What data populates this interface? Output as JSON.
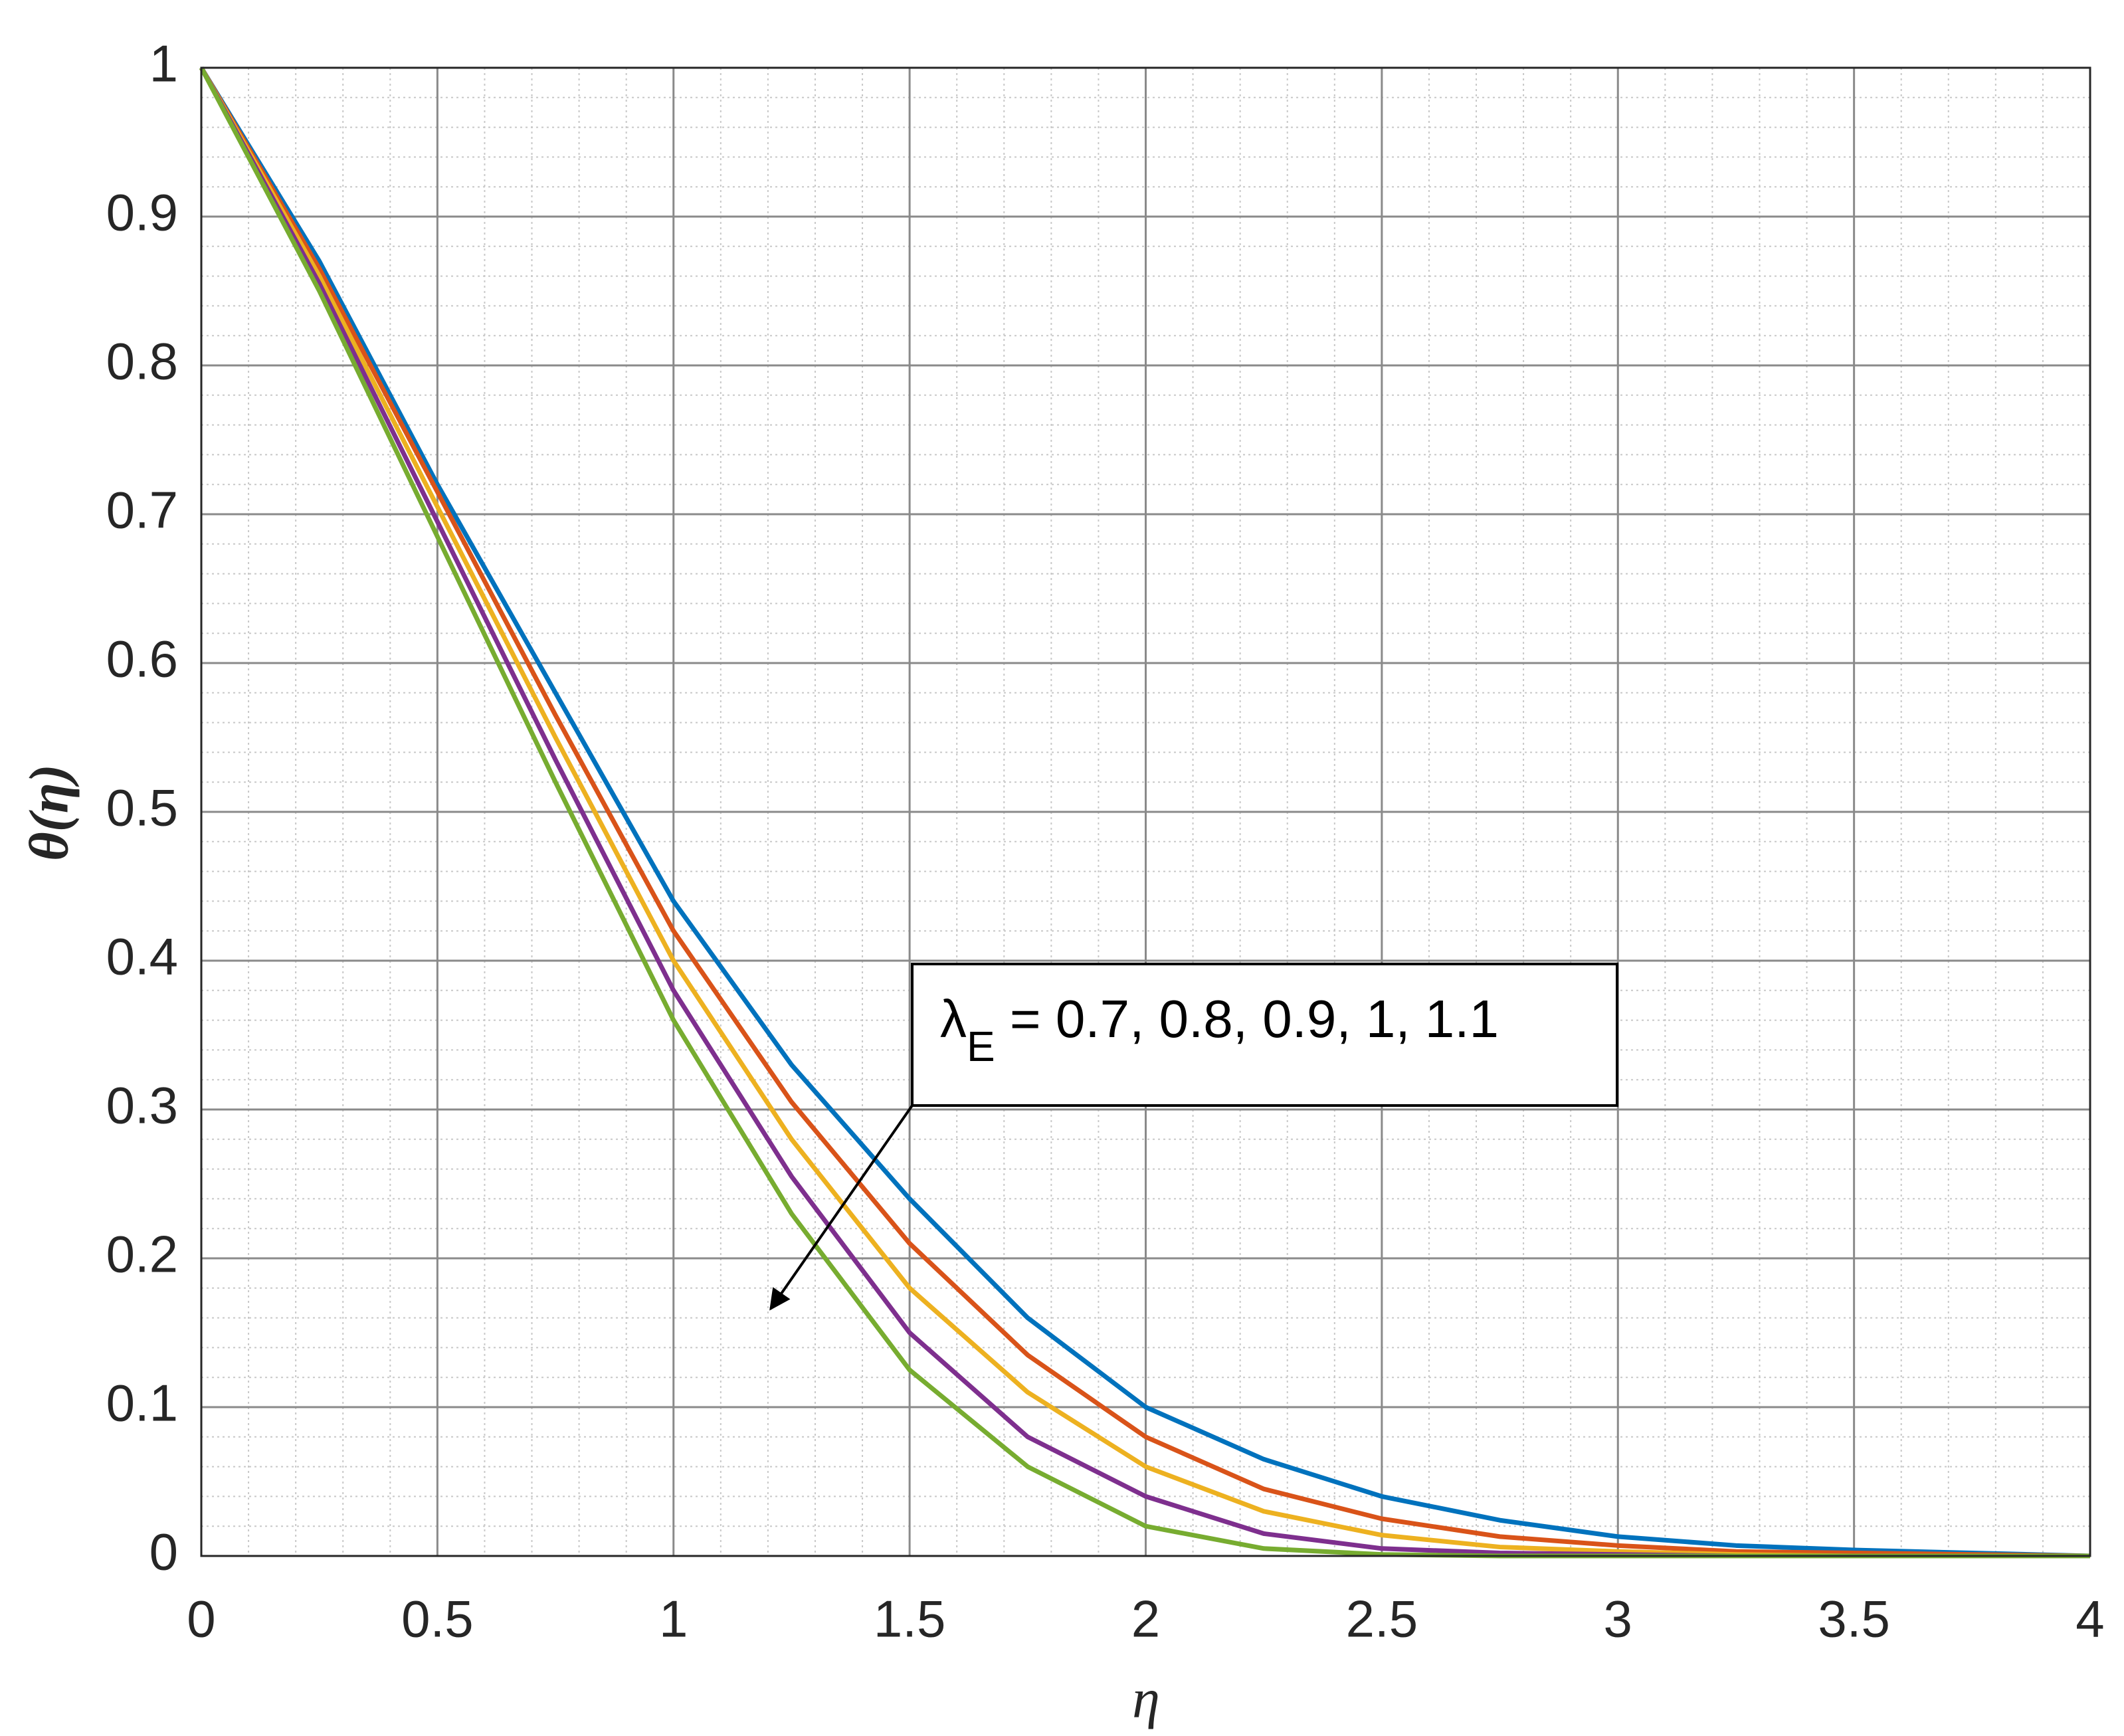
{
  "chart_data": {
    "type": "line",
    "xlabel": "η",
    "ylabel": "θ(η)",
    "x": [
      0,
      0.25,
      0.5,
      0.75,
      1,
      1.25,
      1.5,
      1.75,
      2,
      2.25,
      2.5,
      2.75,
      3,
      3.25,
      3.5,
      3.75,
      4
    ],
    "series": [
      {
        "color": "#0072BD",
        "values": [
          1,
          0.87,
          0.72,
          0.58,
          0.44,
          0.33,
          0.24,
          0.16,
          0.1,
          0.065,
          0.04,
          0.024,
          0.013,
          0.007,
          0.004,
          0.002,
          0
        ]
      },
      {
        "color": "#D95319",
        "values": [
          1,
          0.865,
          0.715,
          0.565,
          0.42,
          0.305,
          0.21,
          0.135,
          0.08,
          0.045,
          0.025,
          0.013,
          0.007,
          0.003,
          0.002,
          0.001,
          0
        ]
      },
      {
        "color": "#EDB120",
        "values": [
          1,
          0.86,
          0.705,
          0.55,
          0.4,
          0.28,
          0.18,
          0.11,
          0.06,
          0.03,
          0.014,
          0.006,
          0.003,
          0.001,
          0,
          0,
          0
        ]
      },
      {
        "color": "#7E2F8E",
        "values": [
          1,
          0.855,
          0.695,
          0.535,
          0.38,
          0.255,
          0.15,
          0.08,
          0.04,
          0.015,
          0.005,
          0.002,
          0.001,
          0,
          0,
          0,
          0
        ]
      },
      {
        "color": "#77AC30",
        "values": [
          1,
          0.85,
          0.685,
          0.52,
          0.36,
          0.23,
          0.125,
          0.06,
          0.02,
          0.005,
          0.001,
          0,
          0,
          0,
          0,
          0,
          0
        ]
      }
    ],
    "xlim": [
      0,
      4
    ],
    "ylim": [
      0,
      1
    ],
    "xticks": [
      0,
      0.5,
      1,
      1.5,
      2,
      2.5,
      3,
      3.5,
      4
    ],
    "yticks": [
      0,
      0.1,
      0.2,
      0.3,
      0.4,
      0.5,
      0.6,
      0.7,
      0.8,
      0.9,
      1
    ],
    "grid": true,
    "minor_grid": true,
    "annotation": {
      "symbol": "λ",
      "subscript": "E",
      "text": " = 0.7, 0.8, 0.9, 1, 1.1"
    }
  }
}
